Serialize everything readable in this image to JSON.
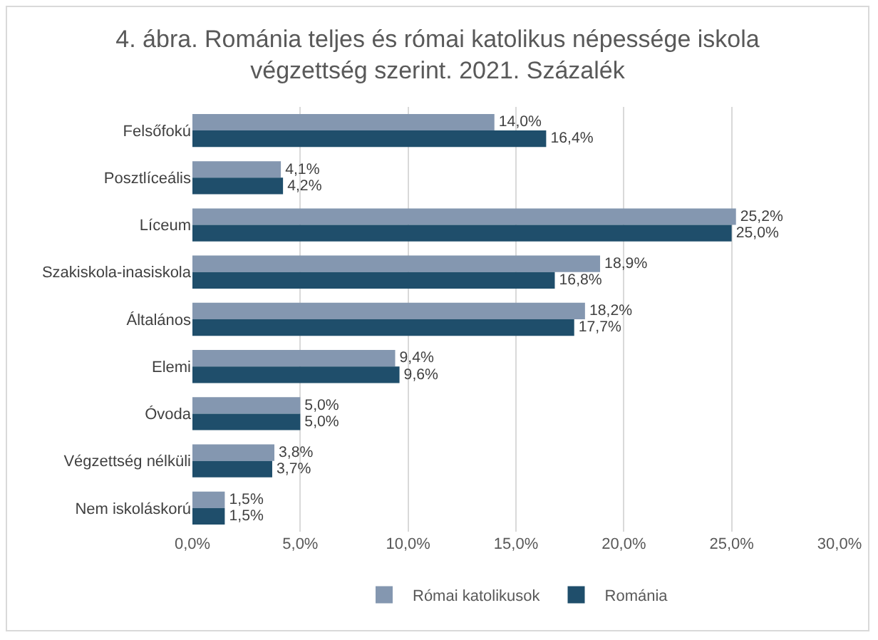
{
  "chart_data": {
    "type": "bar",
    "orientation": "horizontal",
    "title": "4. ábra. Románia teljes és római katolikus népessége iskola végzettség szerint. 2021. Százalék",
    "categories": [
      "Felsőfokú",
      "Posztlíceális",
      "Líceum",
      "Szakiskola-inasiskola",
      "Általános",
      "Elemi",
      "Óvoda",
      "Végzettség nélküli",
      "Nem iskoláskorú"
    ],
    "series": [
      {
        "name": "Római katolikusok",
        "color": "#8497b0",
        "values": [
          14.0,
          4.1,
          25.2,
          18.9,
          18.2,
          9.4,
          5.0,
          3.8,
          1.5
        ],
        "value_labels": [
          "14,0%",
          "4,1%",
          "25,2%",
          "18,9%",
          "18,2%",
          "9,4%",
          "5,0%",
          "3,8%",
          "1,5%"
        ]
      },
      {
        "name": "Románia",
        "color": "#1f4e6b",
        "values": [
          16.4,
          4.2,
          25.0,
          16.8,
          17.7,
          9.6,
          5.0,
          3.7,
          1.5
        ],
        "value_labels": [
          "16,4%",
          "4,2%",
          "25,0%",
          "16,8%",
          "17,7%",
          "9,6%",
          "5,0%",
          "3,7%",
          "1,5%"
        ]
      }
    ],
    "xlim": [
      0,
      30
    ],
    "xticks": [
      {
        "value": 0,
        "label": "0,0%"
      },
      {
        "value": 5,
        "label": "5,0%"
      },
      {
        "value": 10,
        "label": "10,0%"
      },
      {
        "value": 15,
        "label": "15,0%"
      },
      {
        "value": 20,
        "label": "20,0%"
      },
      {
        "value": 25,
        "label": "25,0%"
      },
      {
        "value": 30,
        "label": "30,0%"
      }
    ],
    "grid": "x",
    "legend": "bottom"
  }
}
